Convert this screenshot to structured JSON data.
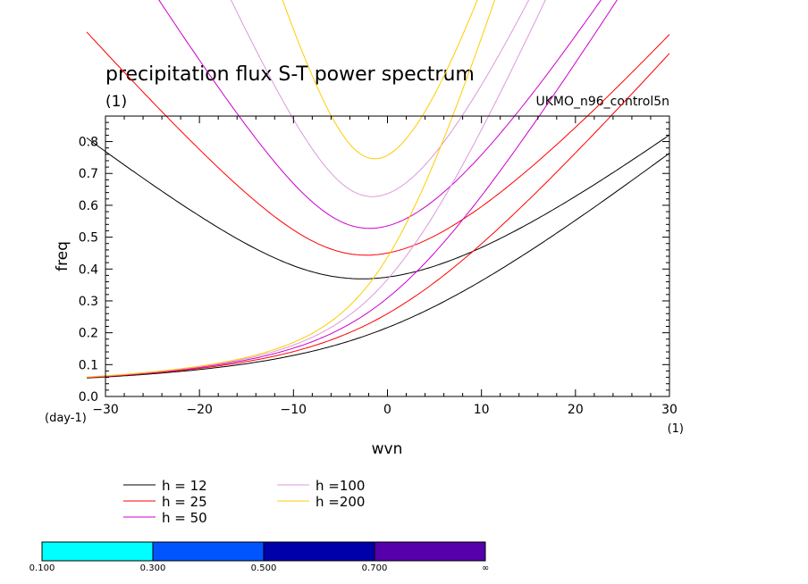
{
  "chart_data": {
    "type": "line",
    "title": "precipitation flux S-T power spectrum",
    "subtitle": "(1)",
    "dataset_label": "UKMO_n96_control5n",
    "xlabel": "wvn",
    "ylabel": "freq",
    "x_unit": "(1)",
    "y_unit": "(day-1)",
    "xlim": [
      -30,
      30
    ],
    "ylim": [
      0,
      0.88
    ],
    "x_ticks": [
      "-30",
      "-20",
      "-10",
      "0",
      "10",
      "20",
      "30"
    ],
    "y_ticks": [
      "0.0",
      "0.1",
      "0.2",
      "0.3",
      "0.4",
      "0.5",
      "0.6",
      "0.7",
      "0.8"
    ],
    "grid": false,
    "legend_position": "bottom",
    "series": [
      {
        "name": "h = 12",
        "color": "#000000"
      },
      {
        "name": "h = 25",
        "color": "#ff0000"
      },
      {
        "name": "h = 50",
        "color": "#cc00cc"
      },
      {
        "name": "h =100",
        "color": "#dd99dd"
      },
      {
        "name": "h =200",
        "color": "#ffcc00"
      }
    ],
    "colorbar": {
      "labels": [
        "0.100",
        "0.300",
        "0.500",
        "0.700",
        "∞"
      ],
      "colors": [
        "#00ffff",
        "#0055ff",
        "#0000aa",
        "#5500aa"
      ]
    }
  }
}
